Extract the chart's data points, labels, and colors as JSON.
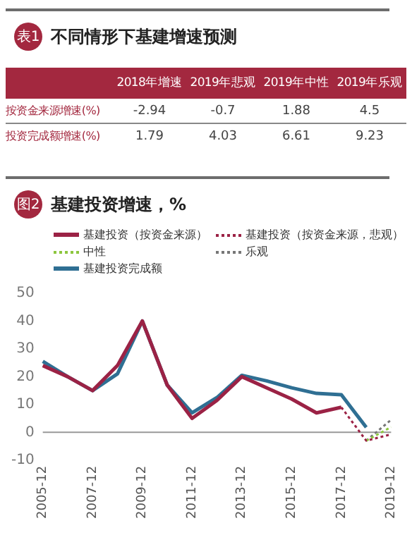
{
  "chart_data": [
    {
      "type": "heatmap",
      "title": "不同情形下基建增速预测",
      "annotations": [
        "表1"
      ],
      "categories": [
        "2018年增速",
        "2019年悲观",
        "2019年中性",
        "2019年乐观"
      ],
      "y_categories": [
        "按资金来源增速(%)",
        "投资完成额增速(%)"
      ],
      "cells": [
        [
          -2.94,
          -0.7,
          1.88,
          4.5
        ],
        [
          1.79,
          4.03,
          6.61,
          9.23
        ]
      ],
      "data_labels": true
    },
    {
      "type": "line",
      "title": "基建投资增速，%",
      "annotations": [
        "图2"
      ],
      "categories": [
        "2005-12",
        null,
        "2007-12",
        null,
        "2009-12",
        null,
        "2011-12",
        null,
        "2013-12",
        null,
        "2015-12",
        null,
        "2017-12",
        null,
        "2019-12"
      ],
      "series": [
        {
          "name": "基建投资（按资金来源）",
          "color": "#9b2245",
          "values": [
            24,
            20,
            15,
            24,
            40,
            17,
            5,
            11.5,
            20,
            16,
            12,
            7,
            9,
            null,
            null
          ]
        },
        {
          "name": "基建投资（按资金来源，悲观）",
          "color": "#9b2245",
          "line_style": "dotted",
          "values": [
            null,
            null,
            null,
            null,
            null,
            null,
            null,
            null,
            null,
            null,
            null,
            null,
            9,
            -3,
            -0.7
          ]
        },
        {
          "name": "中性",
          "color": "#8dc63f",
          "line_style": "dotted",
          "values": [
            null,
            null,
            null,
            null,
            null,
            null,
            null,
            null,
            null,
            null,
            null,
            null,
            null,
            -3,
            1.9
          ]
        },
        {
          "name": "乐观",
          "color": "#777777",
          "line_style": "dotted",
          "values": [
            null,
            null,
            null,
            null,
            null,
            null,
            null,
            null,
            null,
            null,
            null,
            null,
            null,
            -3,
            4.5
          ]
        },
        {
          "name": "基建投资完成额",
          "color": "#2f6f93",
          "values": [
            25.5,
            20,
            15,
            21,
            40,
            17,
            7,
            12.5,
            20.5,
            18.5,
            16,
            14,
            13.5,
            1.8,
            null
          ]
        }
      ],
      "ylim": [
        -10,
        50
      ],
      "yticks": [
        -10,
        0,
        10,
        20,
        30,
        40,
        50
      ],
      "grid": false,
      "legend": "top",
      "marker": "none",
      "ref_lines": [
        {
          "axis": "y",
          "value": 0,
          "color": "#999999"
        }
      ]
    }
  ]
}
